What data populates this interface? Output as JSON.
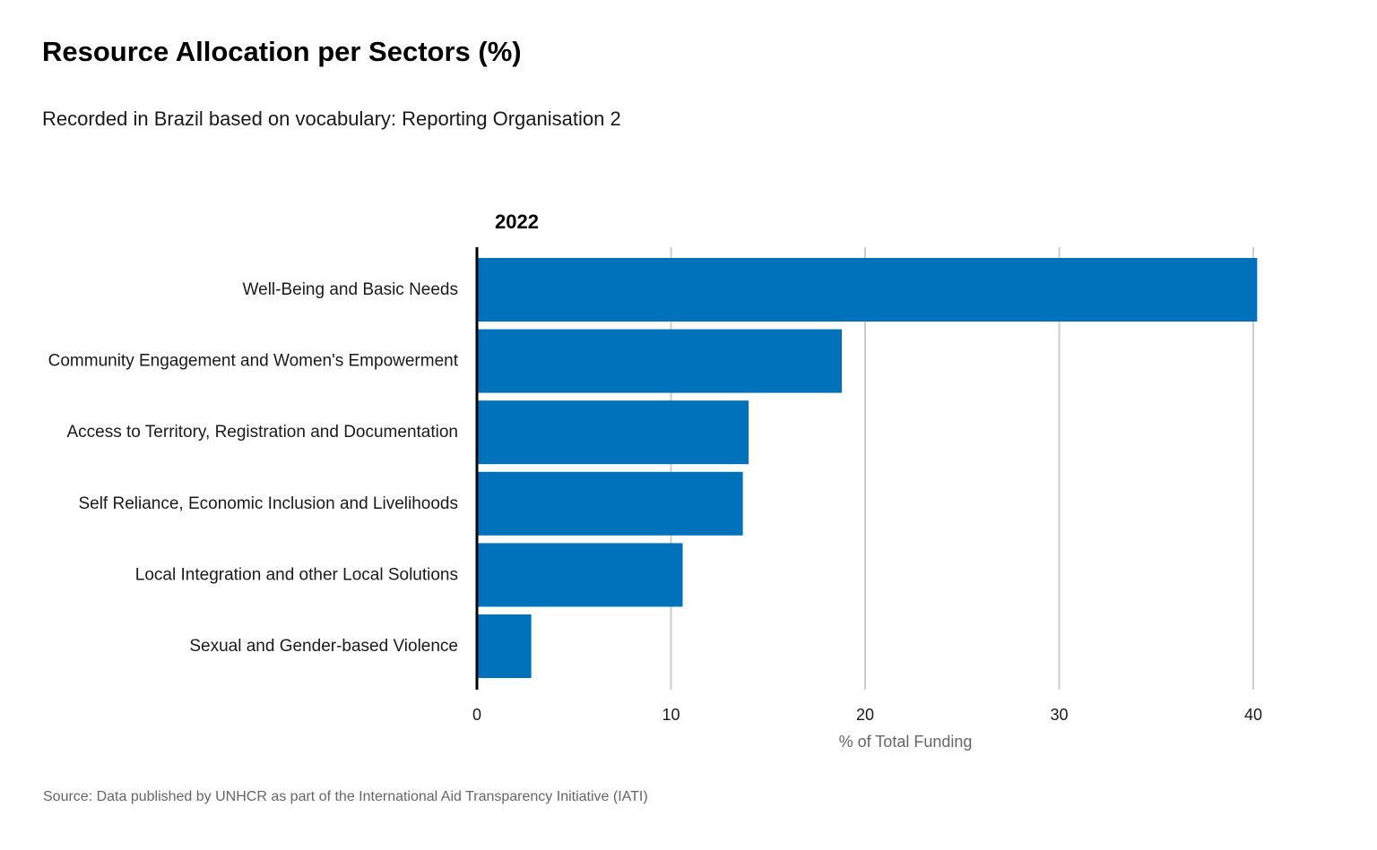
{
  "chart_data": {
    "type": "bar",
    "orientation": "horizontal",
    "title": "Resource  Allocation per Sectors (%)",
    "subtitle": "Recorded in Brazil based on vocabulary: Reporting Organisation 2",
    "facet": "2022",
    "categories": [
      "Well-Being and Basic Needs",
      "Community Engagement and Women's Empowerment",
      "Access to Territory, Registration and Documentation",
      "Self Reliance, Economic Inclusion and Livelihoods",
      "Local Integration and other Local Solutions",
      "Sexual and Gender-based Violence"
    ],
    "values": [
      40.2,
      18.8,
      14.0,
      13.7,
      10.6,
      2.8
    ],
    "xlabel": "% of Total Funding",
    "ylabel": "",
    "xlim": [
      0,
      40
    ],
    "xticks": [
      0,
      10,
      20,
      30,
      40
    ],
    "grid": "vertical",
    "bar_color": "#0072bc",
    "source": "Source: Data published by UNHCR as part of the International  Aid Transparency Initiative (IATI)"
  }
}
